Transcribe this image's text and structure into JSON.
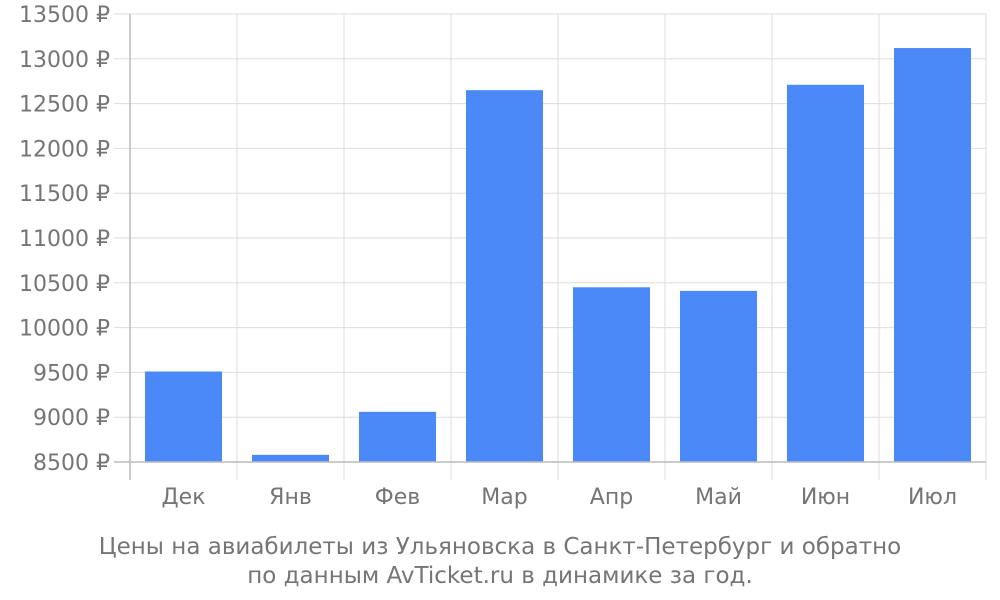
{
  "caption": {
    "line1": "Цены на авиабилеты из Ульяновска в Санкт-Петербург и обратно",
    "line2": "по данным AvTicket.ru в динамике за год."
  },
  "chart_data": {
    "type": "bar",
    "categories": [
      "Дек",
      "Янв",
      "Фев",
      "Мар",
      "Апр",
      "Май",
      "Июн",
      "Июл"
    ],
    "values": [
      9510,
      8580,
      9060,
      12650,
      10450,
      10410,
      12710,
      13120
    ],
    "ylim": [
      8500,
      13500
    ],
    "yticks": [
      8500,
      9000,
      9500,
      10000,
      10500,
      11000,
      11500,
      12000,
      12500,
      13000,
      13500
    ],
    "ytick_labels": [
      "8500 ₽",
      "9000 ₽",
      "9500 ₽",
      "10000 ₽",
      "10500 ₽",
      "11000 ₽",
      "11500 ₽",
      "12000 ₽",
      "12500 ₽",
      "13000 ₽",
      "13500 ₽"
    ],
    "grid": true,
    "colors": {
      "bar": "#4b89f8",
      "grid": "#dddddd",
      "text": "#757575",
      "axis": "#bbbbbb"
    }
  }
}
